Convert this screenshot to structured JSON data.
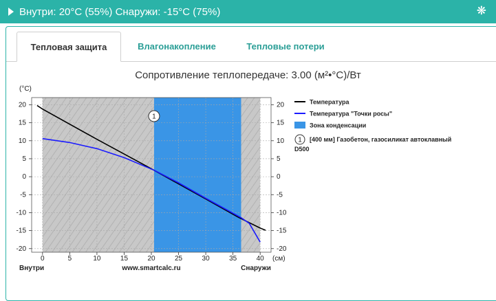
{
  "header": {
    "status": "Внутри: 20°C (55%) Снаружи: -15°C (75%)",
    "expand_icon": "triangle-right-icon",
    "settings_icon": "snowflake-icon"
  },
  "tabs": [
    {
      "label": "Тепловая защита",
      "active": true
    },
    {
      "label": "Влагонакопление",
      "active": false
    },
    {
      "label": "Тепловые потери",
      "active": false
    }
  ],
  "colors": {
    "accent": "#2bb3a8",
    "temperature": "#000000",
    "dew_point": "#1a1aff",
    "condensation_zone": "#3a95e6",
    "material_band": "#c8c8c8"
  },
  "chart_data": {
    "type": "line",
    "title": "Сопротивление теплопередаче: 3.00 (м²•°C)/Вт",
    "ylabel": "(°C)",
    "xlabel": "(см)",
    "x_left_label": "Внутри",
    "x_center_label": "www.smartcalc.ru",
    "x_right_label": "Снаружи",
    "xlim": [
      -2,
      42
    ],
    "ylim": [
      -21,
      22
    ],
    "x_ticks": [
      0,
      5,
      10,
      15,
      20,
      25,
      30,
      35,
      40
    ],
    "y_ticks": [
      20,
      15,
      10,
      5,
      0,
      -5,
      -10,
      -15,
      -20
    ],
    "grid": true,
    "material_layer": {
      "x_start": 0,
      "x_end": 40
    },
    "condensation_zone": {
      "x_start": 20.5,
      "x_end": 36.5
    },
    "layer_marker": {
      "label": "1",
      "x": 20.5
    },
    "series": [
      {
        "name": "Температура",
        "color": "#000000",
        "x": [
          -1,
          0,
          10,
          20,
          30,
          36,
          40,
          41
        ],
        "y": [
          19.8,
          18.8,
          10.4,
          2.2,
          -6.2,
          -11.3,
          -14.3,
          -14.9
        ]
      },
      {
        "name": "Температура \"Точки росы\"",
        "color": "#1a1aff",
        "x": [
          0,
          5,
          10,
          15,
          20.5,
          25,
          30,
          36.5,
          38,
          40
        ],
        "y": [
          10.6,
          9.5,
          7.8,
          5.3,
          1.8,
          -1.7,
          -6.0,
          -11.4,
          -13.0,
          -18.2
        ]
      }
    ],
    "legend": [
      {
        "kind": "line",
        "color": "#000000",
        "label": "Температура"
      },
      {
        "kind": "line",
        "color": "#1a1aff",
        "label": "Температура \"Точки росы\""
      },
      {
        "kind": "box",
        "color": "#3a95e6",
        "label": "Зона конденсации"
      },
      {
        "kind": "marker",
        "marker": "1",
        "label": "[400 мм] Газобетон, газосиликат автоклавный",
        "label2": "D500"
      }
    ]
  }
}
